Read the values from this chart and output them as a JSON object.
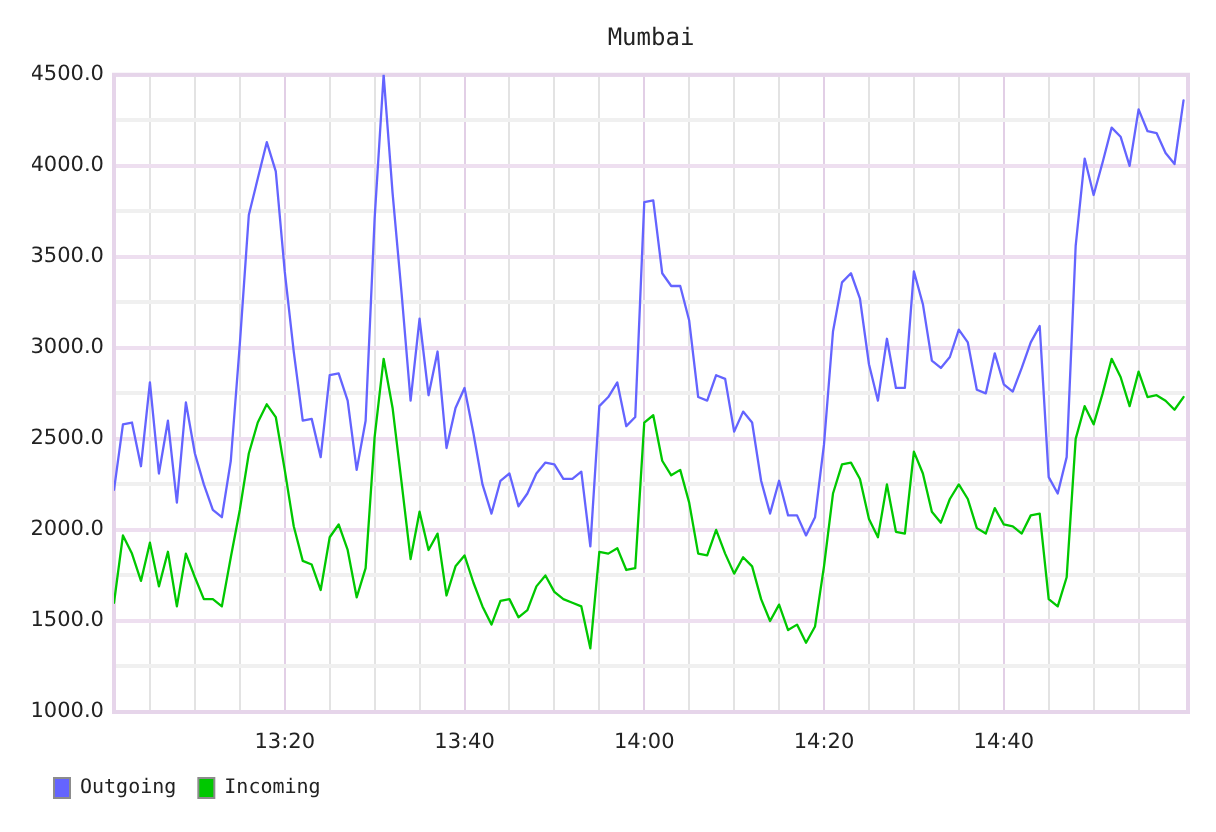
{
  "chart_data": {
    "type": "line",
    "title": "Mumbai",
    "x": [
      13.0167,
      13.0333,
      13.05,
      13.0667,
      13.0833,
      13.1,
      13.1167,
      13.1333,
      13.15,
      13.1667,
      13.1833,
      13.2,
      13.2167,
      13.2333,
      13.25,
      13.2667,
      13.2833,
      13.3,
      13.3167,
      13.3333,
      13.35,
      13.3667,
      13.3833,
      13.4,
      13.4167,
      13.4333,
      13.45,
      13.4667,
      13.4833,
      13.5,
      13.5167,
      13.5333,
      13.55,
      13.5667,
      13.5833,
      13.6,
      13.6167,
      13.6333,
      13.65,
      13.6667,
      13.6833,
      13.7,
      13.7167,
      13.7333,
      13.75,
      13.7667,
      13.7833,
      13.8,
      13.8167,
      13.8333,
      13.85,
      13.8667,
      13.8833,
      13.9,
      13.9167,
      13.9333,
      13.95,
      13.9667,
      13.9833,
      14,
      14.0167,
      14.0333,
      14.05,
      14.0667,
      14.0833,
      14.1,
      14.1167,
      14.1333,
      14.15,
      14.1667,
      14.1833,
      14.2,
      14.2167,
      14.2333,
      14.25,
      14.2667,
      14.2833,
      14.3,
      14.3167,
      14.3333,
      14.35,
      14.3667,
      14.3833,
      14.4,
      14.4167,
      14.4333,
      14.45,
      14.4667,
      14.4833,
      14.5,
      14.5167,
      14.5333,
      14.55,
      14.5667,
      14.5833,
      14.6,
      14.6167,
      14.6333,
      14.65,
      14.6667,
      14.6833,
      14.7,
      14.7167,
      14.7333,
      14.75,
      14.7667,
      14.7833,
      14.8,
      14.8167,
      14.8333,
      14.85,
      14.8667,
      14.8833,
      14.9,
      14.9167,
      14.9333,
      14.95,
      14.9667,
      14.9833,
      15
    ],
    "series": [
      {
        "name": "Outgoing",
        "color": "#6464ff",
        "values": [
          2220,
          2580,
          2590,
          2350,
          2810,
          2310,
          2600,
          2150,
          2700,
          2420,
          2250,
          2110,
          2070,
          2380,
          3020,
          3730,
          3930,
          4130,
          3970,
          3420,
          2980,
          2600,
          2610,
          2400,
          2850,
          2860,
          2710,
          2330,
          2600,
          3710,
          4500,
          3850,
          3300,
          2710,
          3160,
          2740,
          2980,
          2450,
          2670,
          2780,
          2530,
          2250,
          2090,
          2270,
          2310,
          2130,
          2200,
          2310,
          2370,
          2360,
          2280,
          2280,
          2320,
          1910,
          2680,
          2730,
          2810,
          2570,
          2620,
          3800,
          3810,
          3410,
          3340,
          3340,
          3150,
          2730,
          2710,
          2850,
          2830,
          2540,
          2650,
          2590,
          2270,
          2090,
          2270,
          2080,
          2080,
          1970,
          2070,
          2470,
          3090,
          3360,
          3410,
          3270,
          2910,
          2710,
          3050,
          2780,
          2780,
          3420,
          3240,
          2930,
          2890,
          2950,
          3100,
          3030,
          2770,
          2750,
          2970,
          2800,
          2760,
          2890,
          3030,
          3120,
          2290,
          2200,
          2400,
          3560,
          4040,
          3840,
          4020,
          4210,
          4160,
          4000,
          4310,
          4190,
          4180,
          4070,
          4010,
          4360
        ]
      },
      {
        "name": "Incoming",
        "color": "#00c800",
        "values": [
          1600,
          1970,
          1870,
          1720,
          1930,
          1690,
          1880,
          1580,
          1870,
          1740,
          1620,
          1620,
          1580,
          1850,
          2110,
          2420,
          2590,
          2690,
          2620,
          2330,
          2020,
          1830,
          1810,
          1670,
          1960,
          2030,
          1890,
          1630,
          1790,
          2510,
          2940,
          2670,
          2260,
          1840,
          2100,
          1890,
          1980,
          1640,
          1800,
          1860,
          1710,
          1580,
          1480,
          1610,
          1620,
          1520,
          1560,
          1690,
          1750,
          1660,
          1620,
          1600,
          1580,
          1350,
          1880,
          1870,
          1900,
          1780,
          1790,
          2590,
          2630,
          2380,
          2300,
          2330,
          2150,
          1870,
          1860,
          2000,
          1870,
          1760,
          1850,
          1800,
          1620,
          1500,
          1590,
          1450,
          1480,
          1380,
          1470,
          1800,
          2200,
          2360,
          2370,
          2280,
          2060,
          1960,
          2250,
          1990,
          1980,
          2430,
          2310,
          2100,
          2040,
          2170,
          2250,
          2170,
          2010,
          1980,
          2120,
          2030,
          2020,
          1980,
          2080,
          2090,
          1620,
          1580,
          1740,
          2500,
          2680,
          2580,
          2750,
          2940,
          2840,
          2680,
          2870,
          2730,
          2740,
          2710,
          2660,
          2730
        ]
      }
    ],
    "xlim": [
      13.0167,
      15.0083
    ],
    "xticks": [
      {
        "value": 13.0833,
        "label": null
      },
      {
        "value": 13.1667,
        "label": null
      },
      {
        "value": 13.25,
        "label": null
      },
      {
        "value": 13.3333,
        "label": "13:20"
      },
      {
        "value": 13.4167,
        "label": null
      },
      {
        "value": 13.5,
        "label": null
      },
      {
        "value": 13.5833,
        "label": null
      },
      {
        "value": 13.6667,
        "label": "13:40"
      },
      {
        "value": 13.75,
        "label": null
      },
      {
        "value": 13.8333,
        "label": null
      },
      {
        "value": 13.9167,
        "label": null
      },
      {
        "value": 14,
        "label": "14:00"
      },
      {
        "value": 14.0833,
        "label": null
      },
      {
        "value": 14.1667,
        "label": null
      },
      {
        "value": 14.25,
        "label": null
      },
      {
        "value": 14.3333,
        "label": "14:20"
      },
      {
        "value": 14.4167,
        "label": null
      },
      {
        "value": 14.5,
        "label": null
      },
      {
        "value": 14.5833,
        "label": null
      },
      {
        "value": 14.6667,
        "label": "14:40"
      },
      {
        "value": 14.75,
        "label": null
      },
      {
        "value": 14.8333,
        "label": null
      },
      {
        "value": 14.9167,
        "label": null
      }
    ],
    "ylim": [
      1000,
      4500
    ],
    "yticks": [
      {
        "value": 1000,
        "label": "1000.0"
      },
      {
        "value": 1250,
        "label": null
      },
      {
        "value": 1500,
        "label": "1500.0"
      },
      {
        "value": 1750,
        "label": null
      },
      {
        "value": 2000,
        "label": "2000.0"
      },
      {
        "value": 2250,
        "label": null
      },
      {
        "value": 2500,
        "label": "2500.0"
      },
      {
        "value": 2750,
        "label": null
      },
      {
        "value": 3000,
        "label": "3000.0"
      },
      {
        "value": 3250,
        "label": null
      },
      {
        "value": 3500,
        "label": "3500.0"
      },
      {
        "value": 3750,
        "label": null
      },
      {
        "value": 4000,
        "label": "4000.0"
      },
      {
        "value": 4250,
        "label": null
      },
      {
        "value": 4500,
        "label": "4500.0"
      }
    ],
    "grid": true,
    "legend": "bottom left"
  }
}
